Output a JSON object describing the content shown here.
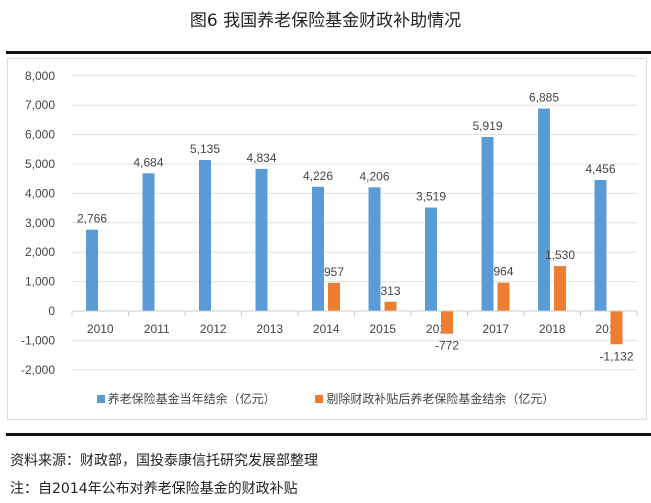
{
  "title": "图6 我国养老保险基金财政补助情况",
  "chart_data": {
    "type": "bar",
    "title": "图6 我国养老保险基金财政补助情况",
    "categories": [
      "2010",
      "2011",
      "2012",
      "2013",
      "2014",
      "2015",
      "2016",
      "2017",
      "2018",
      "2019"
    ],
    "series": [
      {
        "name": "养老保险基金当年结余（亿元）",
        "color": "#5b9bd5",
        "values": [
          2766,
          4684,
          5135,
          4834,
          4226,
          4206,
          3519,
          5919,
          6885,
          4456
        ],
        "labels": [
          "2,766",
          "4,684",
          "5,135",
          "4,834",
          "4,226",
          "4,206",
          "3,519",
          "5,919",
          "6,885",
          "4,456"
        ]
      },
      {
        "name": "剔除财政补贴后养老保险基金结余（亿元）",
        "color": "#ed7d31",
        "values": [
          null,
          null,
          null,
          null,
          957,
          313,
          -772,
          964,
          1530,
          -1132
        ],
        "labels": [
          "",
          "",
          "",
          "",
          "957",
          "313",
          "-772",
          "964",
          "1,530",
          "-1,132"
        ]
      }
    ],
    "ylim": [
      -2000,
      8000
    ],
    "yticks": [
      8000,
      7000,
      6000,
      5000,
      4000,
      3000,
      2000,
      1000,
      0,
      -1000,
      -2000
    ],
    "ytick_labels": [
      "8,000",
      "7,000",
      "6,000",
      "5,000",
      "4,000",
      "3,000",
      "2,000",
      "1,000",
      "0",
      "-1,000",
      "-2,000"
    ],
    "grid": true,
    "legend": "bottom"
  },
  "source": "资料来源：财政部，国投泰康信托研究发展部整理",
  "note": "注：自2014年公布对养老保险基金的财政补贴"
}
